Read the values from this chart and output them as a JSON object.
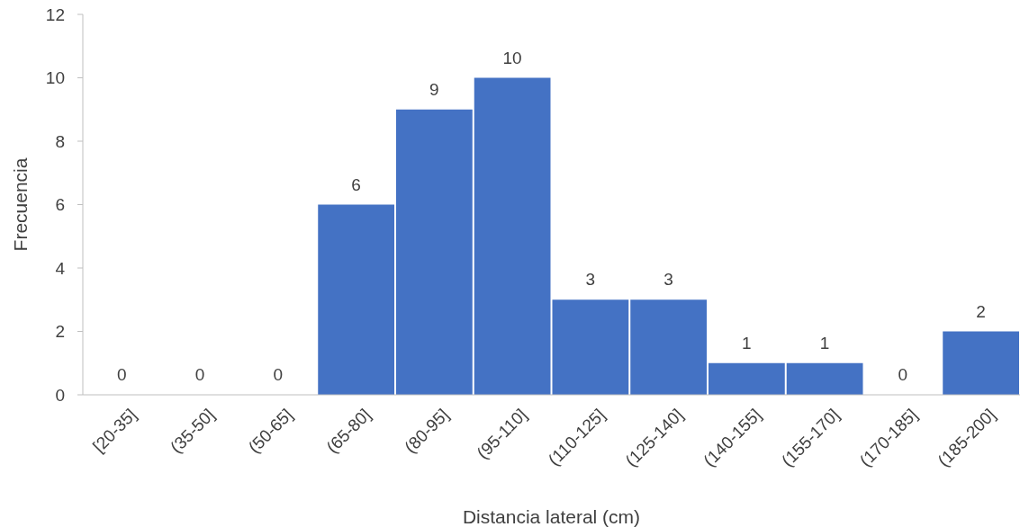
{
  "chart_data": {
    "type": "bar",
    "xlabel": "Distancia lateral (cm)",
    "ylabel": "Frecuencia",
    "categories": [
      "[20-35]",
      "(35-50]",
      "(50-65]",
      "(65-80]",
      "(80-95]",
      "(95-110]",
      "(110-125]",
      "(125-140]",
      "(140-155]",
      "(155-170]",
      "(170-185]",
      "(185-200]"
    ],
    "values": [
      0,
      0,
      0,
      6,
      9,
      10,
      3,
      3,
      1,
      1,
      0,
      2
    ],
    "color": "#4472c4",
    "ylim": [
      0,
      12
    ],
    "yticks": [
      0,
      2,
      4,
      6,
      8,
      10,
      12
    ],
    "data_labels": true,
    "grid": false
  }
}
